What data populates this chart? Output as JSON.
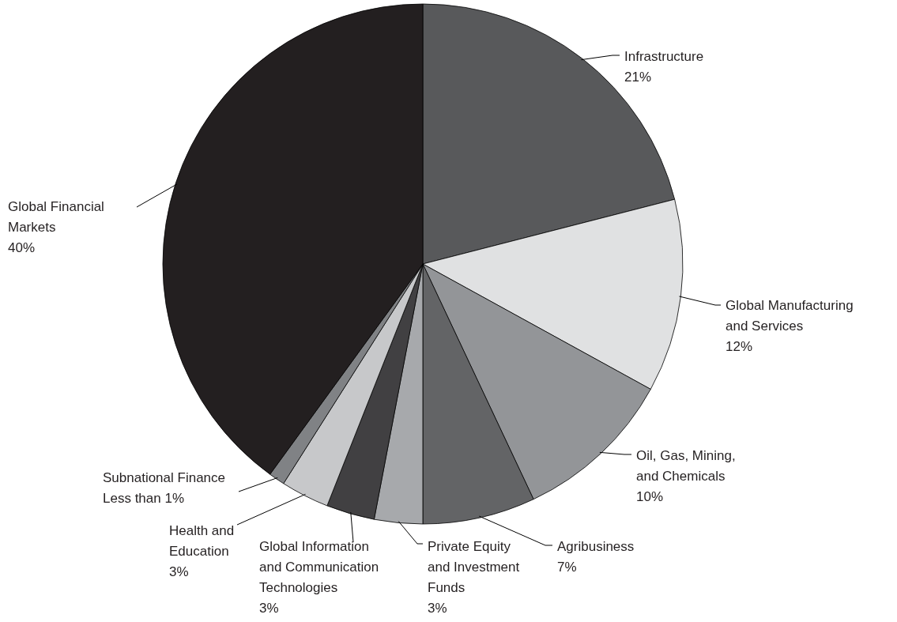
{
  "chart_data": {
    "type": "pie",
    "categories": [
      "Infrastructure",
      "Global Manufacturing and Services",
      "Oil, Gas, Mining, and Chemicals",
      "Agribusiness",
      "Private Equity and Investment Funds",
      "Global Information and Communication Technologies",
      "Health and Education",
      "Subnational Finance",
      "Global Financial Markets"
    ],
    "values": [
      21,
      12,
      10,
      7,
      3,
      3,
      3,
      1,
      40
    ],
    "value_labels": [
      "21%",
      "12%",
      "10%",
      "7%",
      "3%",
      "3%",
      "3%",
      "Less than 1%",
      "40%"
    ],
    "colors": [
      "#58595b",
      "#e0e1e2",
      "#939598",
      "#636466",
      "#a7a9ac",
      "#414042",
      "#c7c8ca",
      "#808285",
      "#231f20"
    ]
  }
}
